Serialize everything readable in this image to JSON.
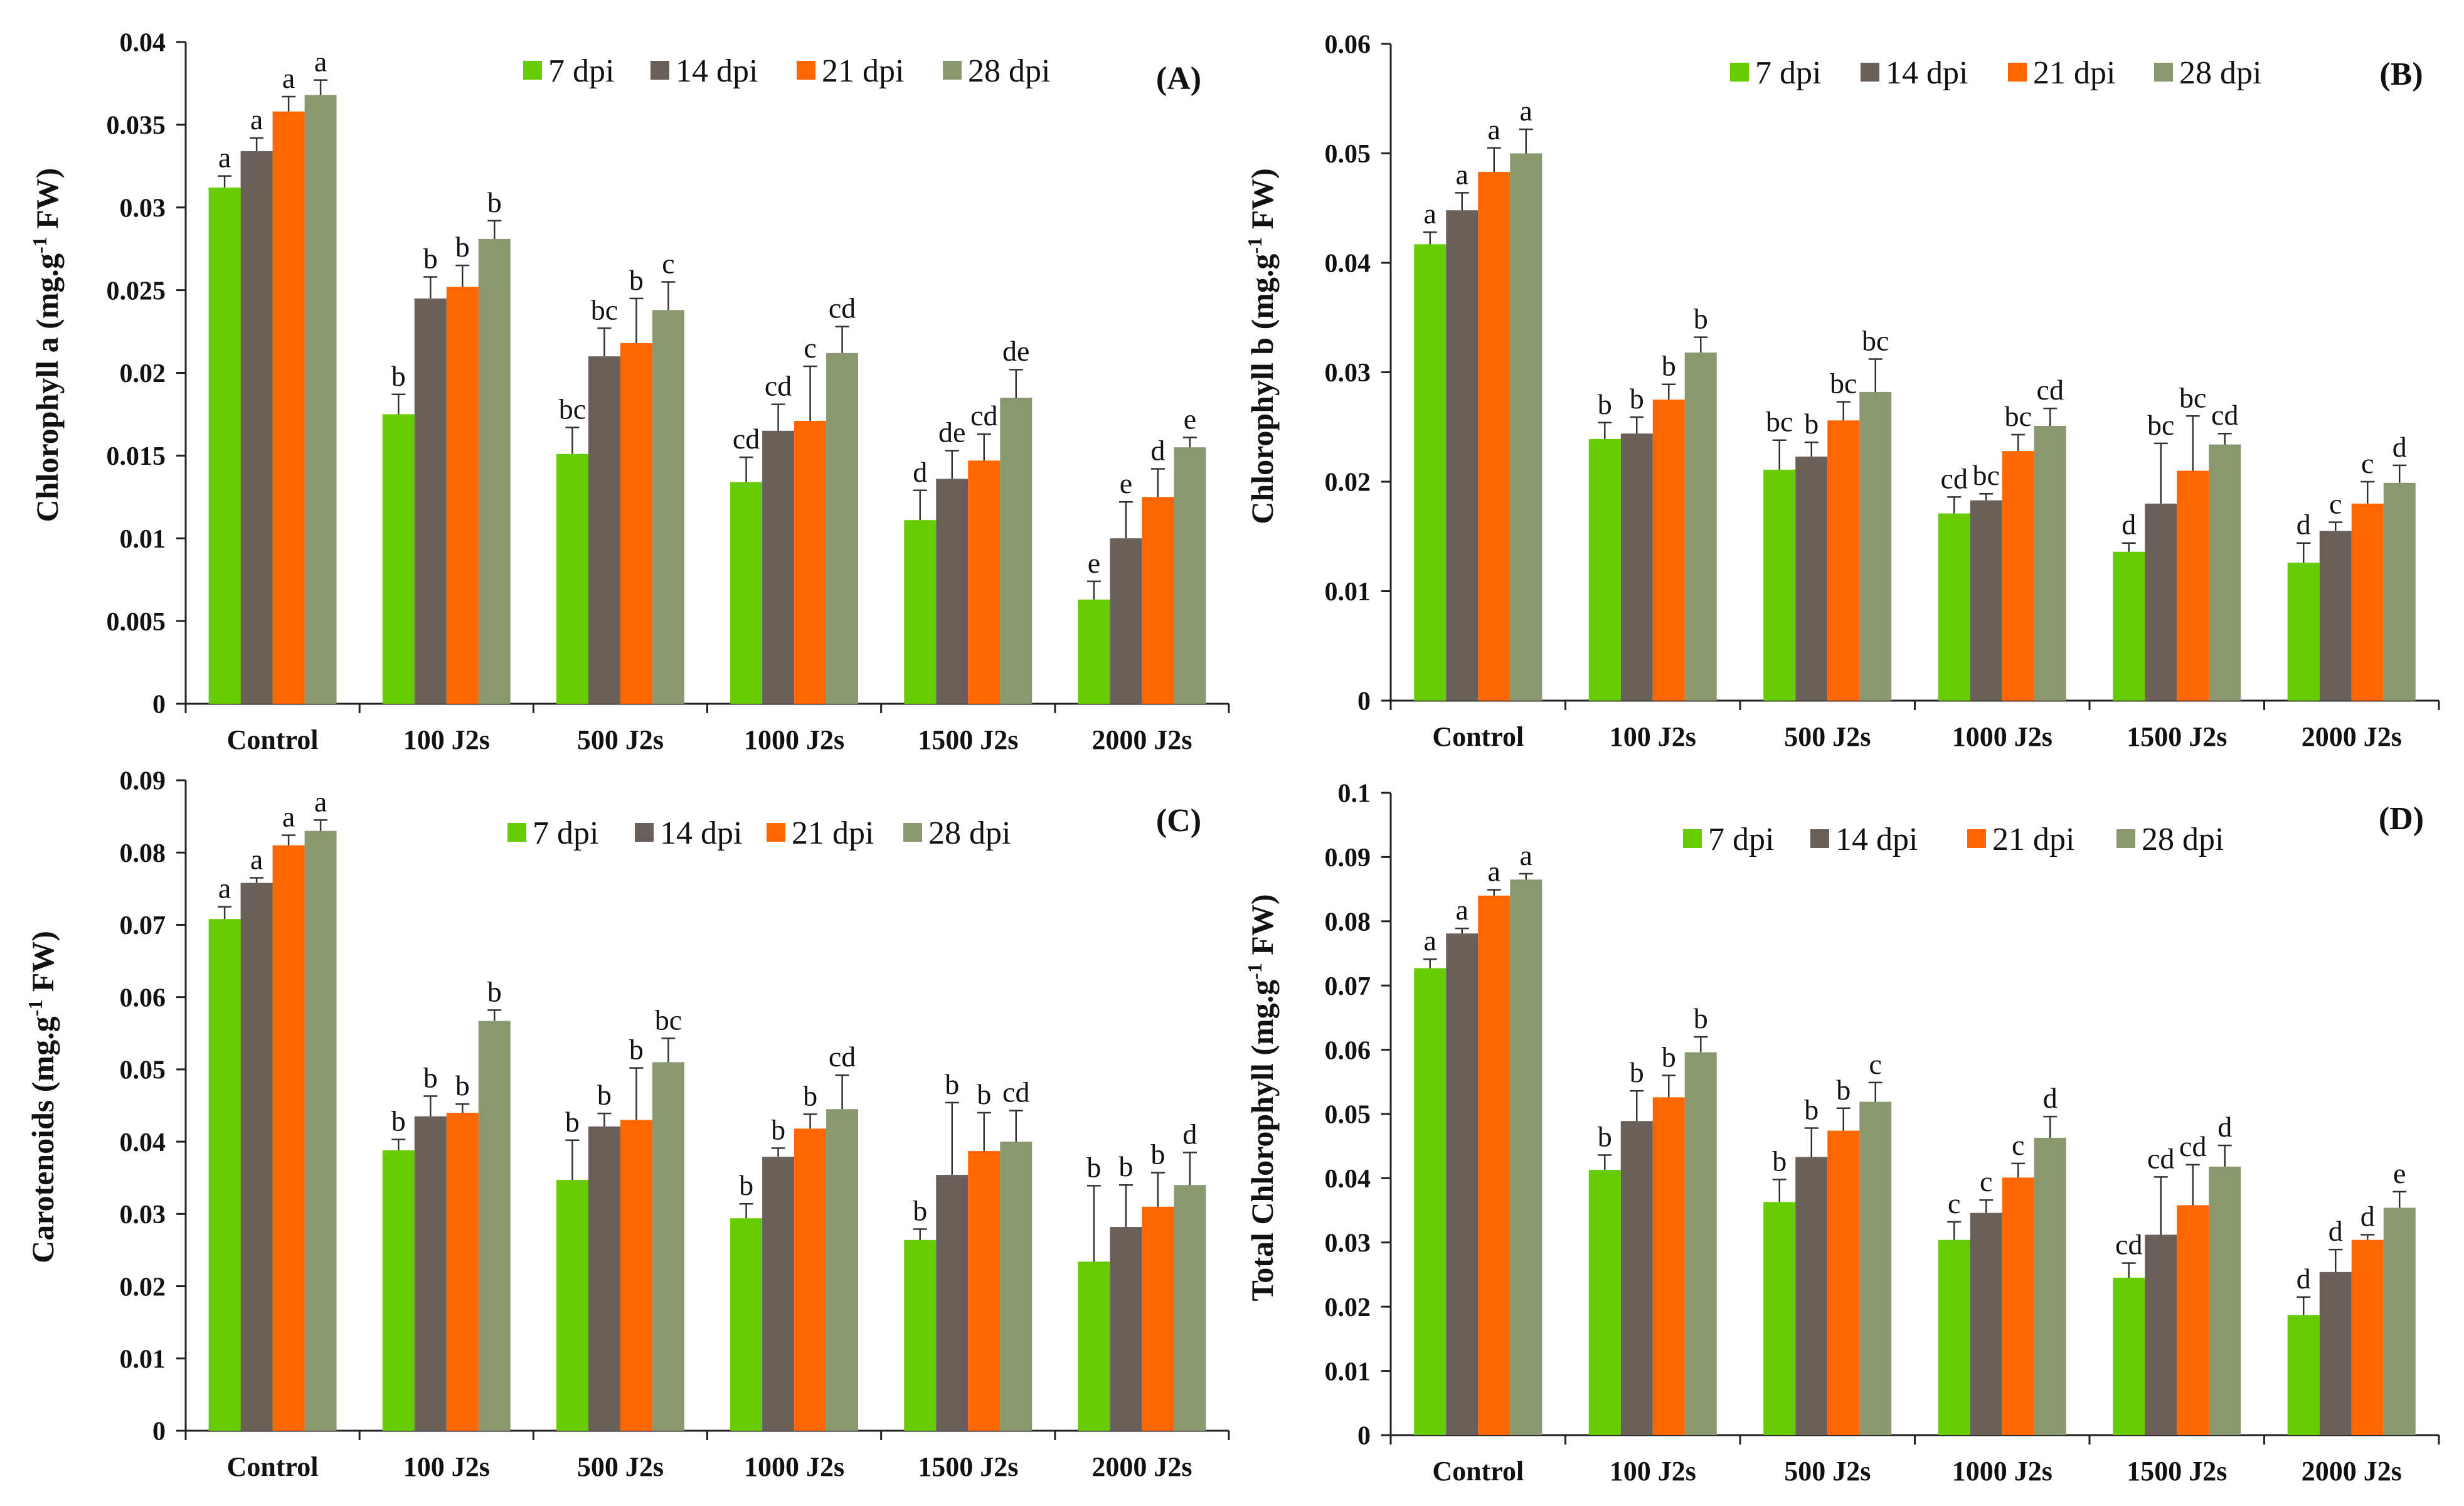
{
  "chart_data": [
    {
      "type": "bar",
      "panel": "(A)",
      "xlabel": "",
      "ylabel": {
        "pre": "Chlorophyll a (mg.g",
        "sup": "-1",
        "post": " FW)"
      },
      "ylim": [
        0,
        0.04
      ],
      "yticks": [
        "0",
        "0.005",
        "0.01",
        "0.015",
        "0.02",
        "0.025",
        "0.03",
        "0.035",
        "0.04"
      ],
      "categories": [
        "Control",
        "100 J2s",
        "500 J2s",
        "1000 J2s",
        "1500 J2s",
        "2000 J2s"
      ],
      "series": [
        {
          "name": "7 dpi",
          "color": "#66cc00",
          "values": [
            0.0312,
            0.0175,
            0.0151,
            0.0134,
            0.0111,
            0.0063
          ],
          "errors": [
            0.0007,
            0.0012,
            0.0016,
            0.0015,
            0.0018,
            0.0011
          ],
          "letters": [
            "a",
            "b",
            "bc",
            "cd",
            "d",
            "e"
          ]
        },
        {
          "name": "14 dpi",
          "color": "#6b5f5a",
          "values": [
            0.0334,
            0.0245,
            0.021,
            0.0165,
            0.0136,
            0.01
          ],
          "errors": [
            0.0008,
            0.0013,
            0.0017,
            0.0016,
            0.0017,
            0.0022
          ],
          "letters": [
            "a",
            "b",
            "bc",
            "cd",
            "de",
            "e"
          ]
        },
        {
          "name": "21 dpi",
          "color": "#ff6600",
          "values": [
            0.0358,
            0.0252,
            0.0218,
            0.0171,
            0.0147,
            0.0125
          ],
          "errors": [
            0.0009,
            0.0013,
            0.0027,
            0.0033,
            0.0016,
            0.0017
          ],
          "letters": [
            "a",
            "b",
            "b",
            "c",
            "cd",
            "d"
          ]
        },
        {
          "name": "28 dpi",
          "color": "#8a9870",
          "values": [
            0.0368,
            0.0281,
            0.0238,
            0.0212,
            0.0185,
            0.0155
          ],
          "errors": [
            0.0009,
            0.0011,
            0.0017,
            0.0016,
            0.0017,
            0.0006
          ],
          "letters": [
            "a",
            "b",
            "c",
            "cd",
            "de",
            "e"
          ]
        }
      ]
    },
    {
      "type": "bar",
      "panel": "(B)",
      "xlabel": "",
      "ylabel": {
        "pre": "Chlorophyll b (mg.g",
        "sup": "-1",
        "post": " FW)"
      },
      "ylim": [
        0,
        0.06
      ],
      "yticks": [
        "0",
        "0.01",
        "0.02",
        "0.03",
        "0.04",
        "0.05",
        "0.06"
      ],
      "categories": [
        "Control",
        "100 J2s",
        "500 J2s",
        "1000 J2s",
        "1500 J2s",
        "2000 J2s"
      ],
      "series": [
        {
          "name": "7 dpi",
          "color": "#66cc00",
          "values": [
            0.0417,
            0.0239,
            0.0211,
            0.0171,
            0.0136,
            0.0126
          ],
          "errors": [
            0.0011,
            0.0015,
            0.0027,
            0.0015,
            0.0008,
            0.0018
          ],
          "letters": [
            "a",
            "b",
            "bc",
            "cd",
            "d",
            "d"
          ]
        },
        {
          "name": "14 dpi",
          "color": "#6b5f5a",
          "values": [
            0.0448,
            0.0244,
            0.0223,
            0.0183,
            0.018,
            0.0155
          ],
          "errors": [
            0.0016,
            0.0015,
            0.0013,
            0.0006,
            0.0055,
            0.0008
          ],
          "letters": [
            "a",
            "b",
            "b",
            "bc",
            "bc",
            "c"
          ]
        },
        {
          "name": "21 dpi",
          "color": "#ff6600",
          "values": [
            0.0483,
            0.0275,
            0.0256,
            0.0228,
            0.021,
            0.018
          ],
          "errors": [
            0.0022,
            0.0014,
            0.0017,
            0.0015,
            0.005,
            0.002
          ],
          "letters": [
            "a",
            "b",
            "bc",
            "bc",
            "bc",
            "c"
          ]
        },
        {
          "name": "28 dpi",
          "color": "#8a9870",
          "values": [
            0.05,
            0.0318,
            0.0282,
            0.0251,
            0.0234,
            0.0199
          ],
          "errors": [
            0.0022,
            0.0014,
            0.003,
            0.0016,
            0.001,
            0.0016
          ],
          "letters": [
            "a",
            "b",
            "bc",
            "cd",
            "cd",
            "d"
          ]
        }
      ]
    },
    {
      "type": "bar",
      "panel": "(C)",
      "xlabel": "",
      "ylabel": {
        "pre": "Carotenoids (mg.g",
        "sup": "-1",
        "post": " FW)"
      },
      "ylim": [
        0,
        0.09
      ],
      "yticks": [
        "0",
        "0.01",
        "0.02",
        "0.03",
        "0.04",
        "0.05",
        "0.06",
        "0.07",
        "0.08",
        "0.09"
      ],
      "categories": [
        "Control",
        "100 J2s",
        "500 J2s",
        "1000 J2s",
        "1500 J2s",
        "2000 J2s"
      ],
      "series": [
        {
          "name": "7 dpi",
          "color": "#66cc00",
          "values": [
            0.0708,
            0.0388,
            0.0347,
            0.0294,
            0.0264,
            0.0234
          ],
          "errors": [
            0.0017,
            0.0015,
            0.0055,
            0.002,
            0.0015,
            0.0105
          ],
          "letters": [
            "a",
            "b",
            "b",
            "b",
            "b",
            "b"
          ]
        },
        {
          "name": "14 dpi",
          "color": "#6b5f5a",
          "values": [
            0.0758,
            0.0435,
            0.0421,
            0.0379,
            0.0354,
            0.0282
          ],
          "errors": [
            0.0007,
            0.0028,
            0.0018,
            0.0012,
            0.01,
            0.0058
          ],
          "letters": [
            "a",
            "b",
            "b",
            "b",
            "b",
            "b"
          ]
        },
        {
          "name": "21 dpi",
          "color": "#ff6600",
          "values": [
            0.081,
            0.044,
            0.043,
            0.0418,
            0.0387,
            0.031
          ],
          "errors": [
            0.0014,
            0.0012,
            0.0072,
            0.002,
            0.0053,
            0.0047
          ],
          "letters": [
            "a",
            "b",
            "b",
            "b",
            "b",
            "b"
          ]
        },
        {
          "name": "28 dpi",
          "color": "#8a9870",
          "values": [
            0.083,
            0.0567,
            0.051,
            0.0445,
            0.04,
            0.034
          ],
          "errors": [
            0.0015,
            0.0015,
            0.0033,
            0.0047,
            0.0043,
            0.0045
          ],
          "letters": [
            "a",
            "b",
            "bc",
            "cd",
            "cd",
            "d"
          ]
        }
      ]
    },
    {
      "type": "bar",
      "panel": "(D)",
      "xlabel": "",
      "ylabel": {
        "pre": "Total Chlorophyll (mg.g",
        "sup": "-1",
        "post": " FW)"
      },
      "ylim": [
        0,
        0.1
      ],
      "yticks": [
        "0",
        "0.01",
        "0.02",
        "0.03",
        "0.04",
        "0.05",
        "0.06",
        "0.07",
        "0.08",
        "0.09",
        "0.1"
      ],
      "categories": [
        "Control",
        "100 J2s",
        "500 J2s",
        "1000 J2s",
        "1500 J2s",
        "2000 J2s"
      ],
      "series": [
        {
          "name": "7 dpi",
          "color": "#66cc00",
          "values": [
            0.0727,
            0.0413,
            0.0363,
            0.0304,
            0.0245,
            0.0187
          ],
          "errors": [
            0.0014,
            0.0023,
            0.0035,
            0.0028,
            0.0023,
            0.0028
          ],
          "letters": [
            "a",
            "b",
            "b",
            "c",
            "cd",
            "d"
          ]
        },
        {
          "name": "14 dpi",
          "color": "#6b5f5a",
          "values": [
            0.0781,
            0.0489,
            0.0433,
            0.0346,
            0.0312,
            0.0254
          ],
          "errors": [
            0.0008,
            0.0047,
            0.0045,
            0.002,
            0.009,
            0.0035
          ],
          "letters": [
            "a",
            "b",
            "b",
            "c",
            "cd",
            "d"
          ]
        },
        {
          "name": "21 dpi",
          "color": "#ff6600",
          "values": [
            0.084,
            0.0526,
            0.0474,
            0.0401,
            0.0358,
            0.0304
          ],
          "errors": [
            0.0009,
            0.0034,
            0.0035,
            0.0022,
            0.0063,
            0.0008
          ],
          "letters": [
            "a",
            "b",
            "b",
            "c",
            "cd",
            "d"
          ]
        },
        {
          "name": "28 dpi",
          "color": "#8a9870",
          "values": [
            0.0865,
            0.0596,
            0.0519,
            0.0463,
            0.0418,
            0.0354
          ],
          "errors": [
            0.0009,
            0.0024,
            0.003,
            0.0033,
            0.0033,
            0.0025
          ],
          "letters": [
            "a",
            "b",
            "c",
            "d",
            "d",
            "e"
          ]
        }
      ]
    }
  ]
}
